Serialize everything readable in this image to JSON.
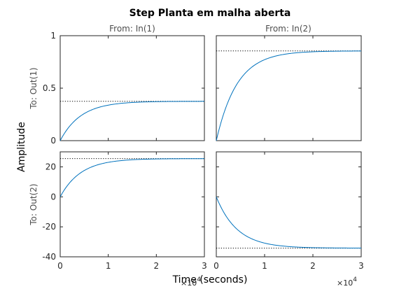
{
  "chart_data": {
    "type": "line",
    "title": "Step Planta em malha aberta",
    "xlabel": "Time (seconds)",
    "ylabel": "Amplitude",
    "x_scale_label": "×10",
    "x_scale_exponent": "4",
    "xlim": [
      0,
      3
    ],
    "xticks": [
      "0",
      "1",
      "2",
      "3"
    ],
    "line_color": "#0072BD",
    "grid": false,
    "columns": [
      "From: In(1)",
      "From: In(2)"
    ],
    "rows": [
      {
        "label": "To: Out(1)",
        "ylim": [
          0,
          1
        ],
        "yticks": [
          "0",
          "0.5",
          "1"
        ]
      },
      {
        "label": "To: Out(2)",
        "ylim": [
          -40,
          30
        ],
        "yticks": [
          "-40",
          "-20",
          "0",
          "20"
        ]
      }
    ],
    "series": [
      {
        "row": 0,
        "col": 0,
        "steady_state": 0.375,
        "time_constant": 0.43
      },
      {
        "row": 0,
        "col": 1,
        "steady_state": 0.855,
        "time_constant": 0.43
      },
      {
        "row": 1,
        "col": 0,
        "steady_state": 25.5,
        "time_constant": 0.43
      },
      {
        "row": 1,
        "col": 1,
        "steady_state": -34.2,
        "time_constant": 0.43
      }
    ]
  }
}
